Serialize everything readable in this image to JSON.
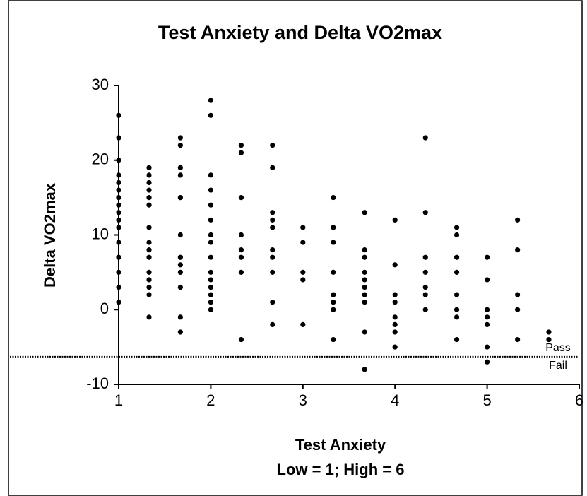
{
  "chart_data": {
    "type": "scatter",
    "title": "Test Anxiety and Delta VO2max",
    "ylabel": "Delta VO2max",
    "xlabel": [
      "Test Anxiety",
      "Low = 1; High = 6"
    ],
    "xlim": [
      1,
      6
    ],
    "xticks": [
      1,
      2,
      3,
      4,
      5,
      6
    ],
    "ylim": [
      -10,
      30
    ],
    "yticks": [
      -10,
      0,
      10,
      20,
      30
    ],
    "color": "#000000",
    "threshold": {
      "value": -6.3,
      "labels": [
        "Pass",
        "Fail"
      ]
    },
    "x": [
      1,
      1,
      1,
      1,
      1,
      1,
      1,
      1,
      1,
      1,
      1,
      1,
      1,
      1,
      1,
      1,
      1.33,
      1.33,
      1.33,
      1.33,
      1.33,
      1.33,
      1.33,
      1.33,
      1.33,
      1.33,
      1.33,
      1.33,
      1.33,
      1.33,
      1.33,
      1.67,
      1.67,
      1.67,
      1.67,
      1.67,
      1.67,
      1.67,
      1.67,
      1.67,
      1.67,
      1.67,
      1.67,
      2,
      2,
      2,
      2,
      2,
      2,
      2,
      2,
      2,
      2,
      2,
      2,
      2,
      2,
      2,
      2.33,
      2.33,
      2.33,
      2.33,
      2.33,
      2.33,
      2.33,
      2.33,
      2.67,
      2.67,
      2.67,
      2.67,
      2.67,
      2.67,
      2.67,
      2.67,
      2.67,
      2.67,
      3,
      3,
      3,
      3,
      3,
      3.33,
      3.33,
      3.33,
      3.33,
      3.33,
      3.33,
      3.33,
      3.33,
      3.67,
      3.67,
      3.67,
      3.67,
      3.67,
      3.67,
      3.67,
      3.67,
      3.67,
      3.67,
      4,
      4,
      4,
      4,
      4,
      4,
      4,
      4,
      4.33,
      4.33,
      4.33,
      4.33,
      4.33,
      4.33,
      4.33,
      4.67,
      4.67,
      4.67,
      4.67,
      4.67,
      4.67,
      4.67,
      4.67,
      5,
      5,
      5,
      5,
      5,
      5,
      5,
      5.33,
      5.33,
      5.33,
      5.33,
      5.33,
      5.67,
      5.67
    ],
    "values": [
      26,
      23,
      20,
      18,
      17,
      16,
      15,
      14,
      13,
      12,
      11,
      9,
      7,
      5,
      3,
      1,
      19,
      18,
      17,
      16,
      15,
      14,
      11,
      9,
      8,
      7,
      5,
      4,
      3,
      2,
      -1,
      23,
      22,
      19,
      18,
      15,
      10,
      7,
      6,
      5,
      3,
      -1,
      -3,
      28,
      26,
      18,
      16,
      14,
      12,
      10,
      9,
      7,
      5,
      4,
      3,
      2,
      1,
      0,
      22,
      21,
      15,
      10,
      8,
      7,
      5,
      -4,
      22,
      19,
      13,
      12,
      11,
      8,
      7,
      5,
      1,
      -2,
      11,
      9,
      5,
      4,
      -2,
      15,
      11,
      9,
      5,
      2,
      1,
      0,
      -4,
      13,
      8,
      7,
      5,
      4,
      3,
      2,
      1,
      -3,
      -8,
      12,
      6,
      2,
      1,
      -1,
      -2,
      -3,
      -5,
      23,
      13,
      7,
      5,
      3,
      2,
      0,
      11,
      10,
      7,
      5,
      2,
      0,
      -1,
      -4,
      7,
      4,
      0,
      -1,
      -2,
      -5,
      -7,
      12,
      8,
      2,
      0,
      -4,
      -3,
      -4
    ]
  }
}
